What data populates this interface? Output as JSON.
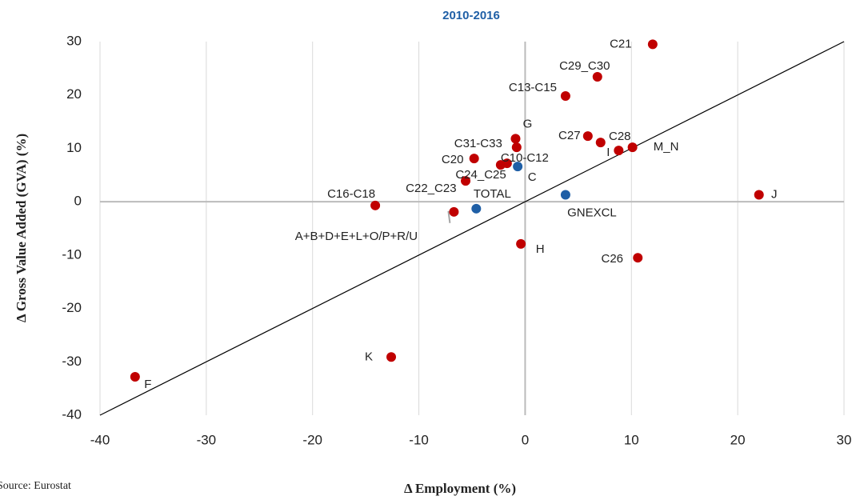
{
  "chart_data": {
    "type": "scatter",
    "title": "2010-2016",
    "x_label": "Δ Employment (%)",
    "y_label": "Δ Gross Value Added (GVA) (%)",
    "source": "Source: Eurostat",
    "xlim": [
      -40,
      30
    ],
    "ylim": [
      -40,
      30
    ],
    "xticks": [
      -40,
      -30,
      -20,
      -10,
      0,
      10,
      20,
      30
    ],
    "yticks": [
      -40,
      -30,
      -20,
      -10,
      0,
      10,
      20,
      30
    ],
    "grid": true,
    "diagonal": true,
    "series": [
      {
        "color": "#c00000",
        "x": [
          12,
          6.8,
          3.8,
          -0.9,
          -0.8,
          5.9,
          7.1,
          8.8,
          10.1,
          -4.8,
          -1.7,
          -2.3,
          -5.6,
          22.0,
          -14.1,
          -6.7,
          -0.4,
          10.6,
          -12.6,
          -36.7
        ],
        "values": [
          29.5,
          23.4,
          19.8,
          11.8,
          10.2,
          12.3,
          11.1,
          9.6,
          10.2,
          8.1,
          7.2,
          6.9,
          3.9,
          1.3,
          -0.7,
          -1.9,
          -7.9,
          -10.5,
          -29.1,
          -32.8
        ],
        "labels": [
          "C21",
          "C29_C30",
          "C13-C15",
          "G",
          "C31-C33",
          "C27",
          "C28",
          "I",
          "M_N",
          "C20",
          "C10-C12",
          "C22_C23",
          "C24_C25",
          "J",
          "C16-C18",
          "A+B+D+E+L+O/P+R/U",
          "H",
          "C26",
          "K",
          "F"
        ]
      },
      {
        "color": "#1f5fa6",
        "x": [
          -0.7,
          -4.6,
          3.8
        ],
        "values": [
          6.6,
          -1.3,
          1.3
        ],
        "labels": [
          "C",
          "TOTAL",
          "GNEXCL"
        ]
      }
    ]
  }
}
